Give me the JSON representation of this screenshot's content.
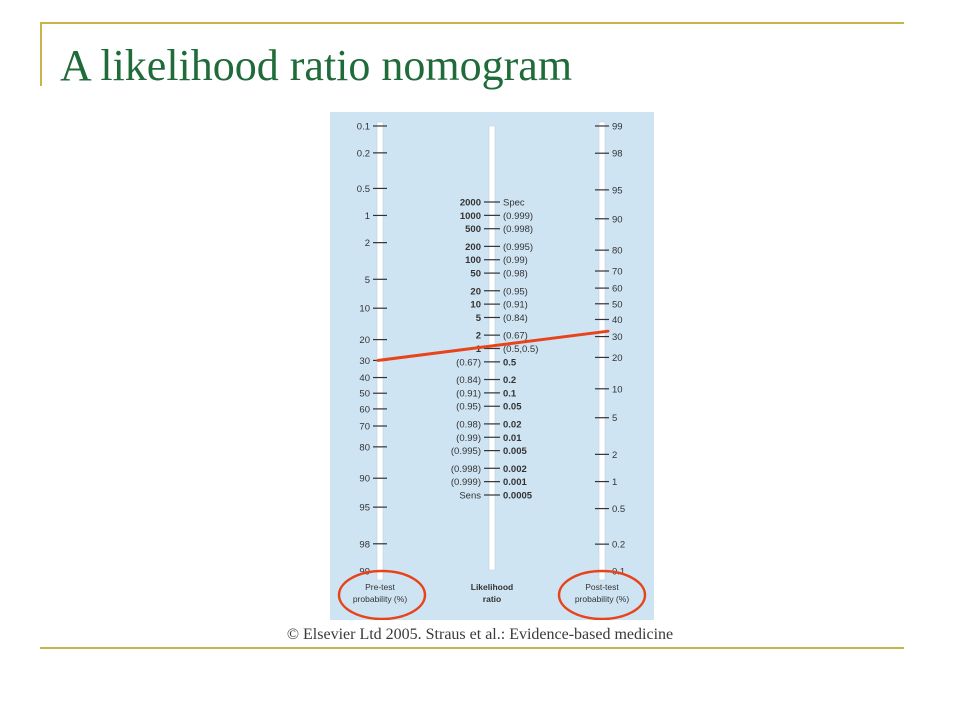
{
  "title": "A likelihood ratio nomogram",
  "credit": "© Elsevier Ltd 2005. Straus et al.: Evidence-based medicine",
  "colors": {
    "title": "#1f6b3a",
    "rule": "#c8b44c",
    "panel": "#cfe4f3",
    "ink": "#333333",
    "highlight": "#e8441c"
  },
  "nomogram": {
    "pretest": {
      "label": [
        "Pre-test",
        "probability (%)"
      ],
      "ticks": [
        "0.1",
        "0.2",
        "0.5",
        "1",
        "2",
        "5",
        "10",
        "20",
        "30",
        "40",
        "50",
        "60",
        "70",
        "80",
        "90",
        "95",
        "98",
        "99"
      ]
    },
    "lr": {
      "label": [
        "Likelihood",
        "ratio"
      ],
      "ticks": [
        {
          "value": "2000",
          "note": "Spec"
        },
        {
          "value": "1000",
          "note": "(0.999)"
        },
        {
          "value": "500",
          "note": "(0.998)"
        },
        {
          "value": "200",
          "note": "(0.995)"
        },
        {
          "value": "100",
          "note": "(0.99)"
        },
        {
          "value": "50",
          "note": "(0.98)"
        },
        {
          "value": "20",
          "note": "(0.95)"
        },
        {
          "value": "10",
          "note": "(0.91)"
        },
        {
          "value": "5",
          "note": "(0.84)"
        },
        {
          "value": "2",
          "note": "(0.67)"
        },
        {
          "value": "1",
          "note": "(0.5,0.5)"
        },
        {
          "value": "0.5",
          "note": "(0.67)"
        },
        {
          "value": "0.2",
          "note": "(0.84)"
        },
        {
          "value": "0.1",
          "note": "(0.91)"
        },
        {
          "value": "0.05",
          "note": "(0.95)"
        },
        {
          "value": "0.02",
          "note": "(0.98)"
        },
        {
          "value": "0.01",
          "note": "(0.99)"
        },
        {
          "value": "0.005",
          "note": "(0.995)"
        },
        {
          "value": "0.002",
          "note": "(0.998)"
        },
        {
          "value": "0.001",
          "note": "(0.999)"
        },
        {
          "value": "0.0005",
          "note": "Sens"
        }
      ]
    },
    "posttest": {
      "label": [
        "Post-test",
        "probability (%)"
      ],
      "ticks": [
        "99",
        "98",
        "95",
        "90",
        "80",
        "70",
        "60",
        "50",
        "40",
        "30",
        "20",
        "10",
        "5",
        "2",
        "1",
        "0.5",
        "0.2",
        "0.1"
      ]
    },
    "example_line": {
      "pretest": 30,
      "posttest": 33
    }
  }
}
